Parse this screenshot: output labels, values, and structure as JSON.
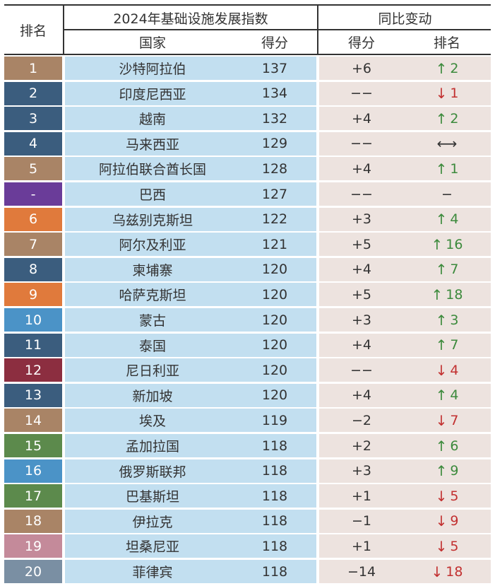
{
  "header": {
    "rank_label": "排名",
    "index_title": "2024年基础设施发展指数",
    "change_title": "同比变动",
    "country_label": "国家",
    "score_label": "得分",
    "change_score_label": "得分",
    "change_rank_label": "排名"
  },
  "rows": [
    {
      "rank": "1",
      "country": "沙特阿拉伯",
      "score": "137",
      "score_change": "+6",
      "rank_dir": "up",
      "rank_change": "2",
      "color": "#a98466"
    },
    {
      "rank": "2",
      "country": "印度尼西亚",
      "score": "134",
      "score_change": "−−",
      "rank_dir": "down",
      "rank_change": "1",
      "color": "#3b5d7e"
    },
    {
      "rank": "3",
      "country": "越南",
      "score": "132",
      "score_change": "+4",
      "rank_dir": "up",
      "rank_change": "2",
      "color": "#3b5d7e"
    },
    {
      "rank": "4",
      "country": "马来西亚",
      "score": "129",
      "score_change": "−−",
      "rank_dir": "both",
      "rank_change": "",
      "color": "#3b5d7e"
    },
    {
      "rank": "5",
      "country": "阿拉伯联合酋长国",
      "score": "128",
      "score_change": "+4",
      "rank_dir": "up",
      "rank_change": "1",
      "color": "#a98466"
    },
    {
      "rank": "-",
      "country": "巴西",
      "score": "127",
      "score_change": "−−",
      "rank_dir": "none",
      "rank_change": "−",
      "color": "#6a3c99"
    },
    {
      "rank": "6",
      "country": "乌兹别克斯坦",
      "score": "122",
      "score_change": "+3",
      "rank_dir": "up",
      "rank_change": "4",
      "color": "#e07a3c"
    },
    {
      "rank": "7",
      "country": "阿尔及利亚",
      "score": "121",
      "score_change": "+5",
      "rank_dir": "up",
      "rank_change": "16",
      "color": "#a98466"
    },
    {
      "rank": "8",
      "country": "柬埔寨",
      "score": "120",
      "score_change": "+4",
      "rank_dir": "up",
      "rank_change": "7",
      "color": "#3b5d7e"
    },
    {
      "rank": "9",
      "country": "哈萨克斯坦",
      "score": "120",
      "score_change": "+5",
      "rank_dir": "up",
      "rank_change": "18",
      "color": "#e07a3c"
    },
    {
      "rank": "10",
      "country": "蒙古",
      "score": "120",
      "score_change": "+3",
      "rank_dir": "up",
      "rank_change": "3",
      "color": "#4b93c7"
    },
    {
      "rank": "11",
      "country": "泰国",
      "score": "120",
      "score_change": "+4",
      "rank_dir": "up",
      "rank_change": "7",
      "color": "#3b5d7e"
    },
    {
      "rank": "12",
      "country": "尼日利亚",
      "score": "120",
      "score_change": "−−",
      "rank_dir": "down",
      "rank_change": "4",
      "color": "#8c2e40"
    },
    {
      "rank": "13",
      "country": "新加坡",
      "score": "120",
      "score_change": "+4",
      "rank_dir": "up",
      "rank_change": "4",
      "color": "#3b5d7e"
    },
    {
      "rank": "14",
      "country": "埃及",
      "score": "119",
      "score_change": "−2",
      "rank_dir": "down",
      "rank_change": "7",
      "color": "#a98466"
    },
    {
      "rank": "15",
      "country": "孟加拉国",
      "score": "118",
      "score_change": "+2",
      "rank_dir": "up",
      "rank_change": "6",
      "color": "#5c8a4c"
    },
    {
      "rank": "16",
      "country": "俄罗斯联邦",
      "score": "118",
      "score_change": "+3",
      "rank_dir": "up",
      "rank_change": "9",
      "color": "#4b93c7"
    },
    {
      "rank": "17",
      "country": "巴基斯坦",
      "score": "118",
      "score_change": "+1",
      "rank_dir": "down",
      "rank_change": "5",
      "color": "#5c8a4c"
    },
    {
      "rank": "18",
      "country": "伊拉克",
      "score": "118",
      "score_change": "−1",
      "rank_dir": "down",
      "rank_change": "9",
      "color": "#a98466"
    },
    {
      "rank": "19",
      "country": "坦桑尼亚",
      "score": "118",
      "score_change": "+1",
      "rank_dir": "down",
      "rank_change": "5",
      "color": "#c48a9a"
    },
    {
      "rank": "20",
      "country": "菲律宾",
      "score": "118",
      "score_change": "−14",
      "rank_dir": "down",
      "rank_change": "18",
      "color": "#7a8fa3"
    }
  ]
}
